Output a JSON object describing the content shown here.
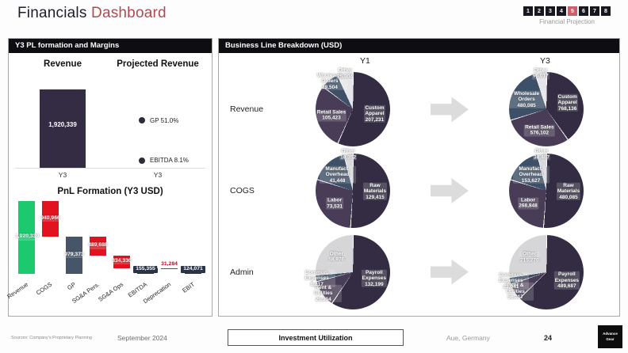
{
  "header": {
    "title_primary": "Financials",
    "title_accent": "Dashboard",
    "accent_color": "#b04a50",
    "pager": {
      "pages": [
        "1",
        "2",
        "3",
        "4",
        "5",
        "6",
        "7",
        "8"
      ],
      "active_page": "5",
      "active_color": "#c9606b",
      "label": "Financial Projection"
    }
  },
  "left_panel": {
    "header": "Y3 PL formation and Margins"
  },
  "right_panel": {
    "header": "Business Line Breakdown (USD)"
  },
  "chart_data": [
    {
      "id": "revenue_bar",
      "type": "bar",
      "title": "Revenue",
      "categories": [
        "Y3"
      ],
      "values": [
        1920339
      ],
      "labels": [
        "1,920,339"
      ],
      "ylim": [
        0,
        2300000
      ],
      "bar_color": "#332c42"
    },
    {
      "id": "projected_margins",
      "type": "scatter",
      "title": "Projected Revenue",
      "categories": [
        "Y3"
      ],
      "ylim": [
        0,
        100
      ],
      "points": [
        {
          "label": "GP 51.0%",
          "value": 51.0
        },
        {
          "label": "EBITDA 8.1%",
          "value": 8.1
        }
      ]
    },
    {
      "id": "pnl_waterfall",
      "type": "bar",
      "subtype": "waterfall",
      "title": "PnL Formation (Y3  USD)",
      "ylim": [
        0,
        1920339
      ],
      "categories": [
        "Revenue",
        "COGS",
        "GP",
        "SG&A Pers.",
        "SG&A Ops",
        "EBITDA",
        "Deprecation",
        "EBIT"
      ],
      "entries": [
        {
          "label": "Revenue",
          "value": 1920339,
          "display": "1,920,339",
          "op": "total",
          "color": "#1dc96f",
          "label_style": "light"
        },
        {
          "label": "COGS",
          "value": 940966,
          "display": "940,966",
          "op": "decrease",
          "color": "#e0131e",
          "label_style": "light"
        },
        {
          "label": "GP",
          "value": 979373,
          "display": "979,373",
          "op": "total",
          "color": "#475569",
          "label_style": "light"
        },
        {
          "label": "SG&A Pers.",
          "value": 489688,
          "display": "489,688",
          "op": "decrease",
          "color": "#e0131e",
          "label_style": "light"
        },
        {
          "label": "SG&A Ops",
          "value": 334330,
          "display": "334,330",
          "op": "decrease",
          "color": "#e0131e",
          "label_style": "light"
        },
        {
          "label": "EBITDA",
          "value": 155355,
          "display": "155,355",
          "op": "total",
          "color": "#2b3347",
          "label_style": "darkbox"
        },
        {
          "label": "Deprecation",
          "value": 31284,
          "display": "31,284",
          "op": "decrease",
          "color": "#e0131e",
          "label_style": "redtext"
        },
        {
          "label": "EBIT",
          "value": 124071,
          "display": "124,071",
          "op": "total",
          "color": "#2b3347",
          "label_style": "darkbox"
        }
      ]
    },
    {
      "id": "business_breakdown",
      "type": "pie",
      "title": "Business Line Breakdown (USD)",
      "columns": [
        "Y1",
        "Y3"
      ],
      "rows": [
        {
          "label": "Revenue",
          "colors": [
            "#332c42",
            "#483c57",
            "#3e5067",
            "#e6e6ea"
          ],
          "charts": {
            "Y1": {
              "slices": [
                {
                  "name": "Custom Apparel",
                  "value": 207231,
                  "display": "207,231"
                },
                {
                  "name": "Retail Sales",
                  "value": 105423,
                  "display": "105,423"
                },
                {
                  "name": "Wholesale Orders",
                  "value": 29504,
                  "display": "29,504"
                },
                {
                  "name": "Other",
                  "value": 25304,
                  "display": "25,304"
                }
              ]
            },
            "Y3": {
              "slices": [
                {
                  "name": "Custom Apparel",
                  "value": 768136,
                  "display": "768,136"
                },
                {
                  "name": "Retail Sales",
                  "value": 576102,
                  "display": "576,102"
                },
                {
                  "name": "Wholesale Orders",
                  "value": 480085,
                  "display": "480,085"
                },
                {
                  "name": "Other",
                  "value": 96017,
                  "display": "96,017"
                }
              ]
            }
          }
        },
        {
          "label": "COGS",
          "colors": [
            "#332c42",
            "#483c57",
            "#3e5067",
            "#d8d9dd"
          ],
          "charts": {
            "Y1": {
              "slices": [
                {
                  "name": "Raw Materials",
                  "value": 129415,
                  "display": "129,415"
                },
                {
                  "name": "Labor",
                  "value": 73531,
                  "display": "73,531"
                },
                {
                  "name": "Manufact. Overhead",
                  "value": 41448,
                  "display": "41,448"
                },
                {
                  "name": "Other",
                  "value": 10352,
                  "display": "10,352"
                }
              ]
            },
            "Y3": {
              "slices": [
                {
                  "name": "Raw Materials",
                  "value": 480085,
                  "display": "480,085"
                },
                {
                  "name": "Labor",
                  "value": 268848,
                  "display": "268,848"
                },
                {
                  "name": "Manufact. Overhead",
                  "value": 153627,
                  "display": "153,627"
                },
                {
                  "name": "Other",
                  "value": 38407,
                  "display": "38,407"
                }
              ]
            }
          }
        },
        {
          "label": "Admin",
          "colors": [
            "#332c42",
            "#483c57",
            "#3e5067",
            "#d6d6d8"
          ],
          "charts": {
            "Y1": {
              "slices": [
                {
                  "name": "Payroll Expenses",
                  "value": 132199,
                  "display": "132,199"
                },
                {
                  "name": "Rent & Utilities",
                  "value": 25904,
                  "display": "25,904"
                },
                {
                  "name": "Commun. Expenses",
                  "value": 6217,
                  "display": "6,217"
                },
                {
                  "name": "Other",
                  "value": 58976,
                  "display": "58,976"
                }
              ]
            },
            "Y3": {
              "slices": [
                {
                  "name": "Payroll Expenses",
                  "value": 489687,
                  "display": "489,687"
                },
                {
                  "name": "Rent & Utilities",
                  "value": 56017,
                  "display": "56,017"
                },
                {
                  "name": "Commun. Expenses",
                  "value": 23041,
                  "display": "23,041"
                },
                {
                  "name": "Other",
                  "value": 215270,
                  "display": "215,270"
                }
              ]
            }
          }
        }
      ]
    }
  ],
  "footer": {
    "sources": "Sources: Company's Proprietary Planning",
    "date": "September 2024",
    "button_label": "Investment Utilization",
    "location": "Aue, Germany",
    "page_number": "24",
    "logo_line1": "Advance",
    "logo_line2": "Gear"
  }
}
